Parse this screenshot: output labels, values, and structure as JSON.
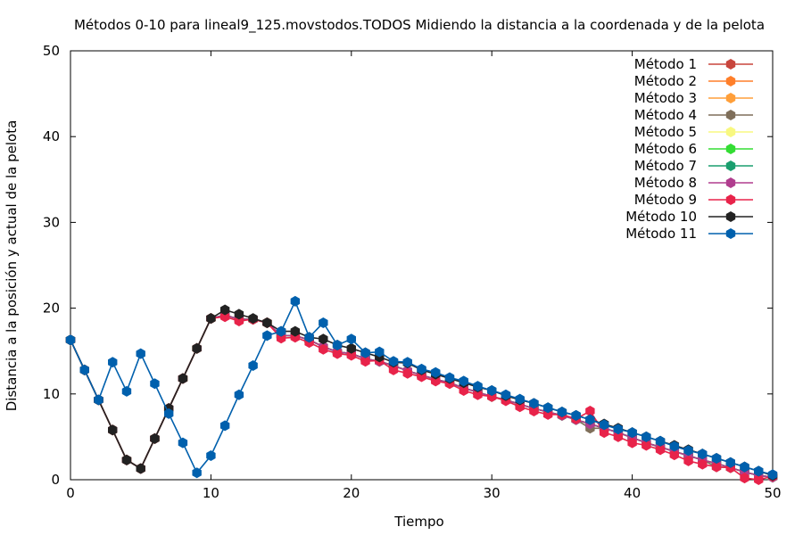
{
  "chart_data": {
    "type": "line",
    "title": "Métodos 0-10 para lineal9_125.movstodos.TODOS Midiendo la distancia a la coordenada y de la pelota",
    "xlabel": "Tiempo",
    "ylabel": "Distancia a la posición y actual de la pelota",
    "xlim": [
      0,
      50
    ],
    "ylim": [
      0,
      50
    ],
    "x_ticks": [
      0,
      10,
      20,
      30,
      40,
      50
    ],
    "y_ticks": [
      0,
      10,
      20,
      30,
      40,
      50
    ],
    "grid": false,
    "legend_position": "top-right",
    "x": [
      0,
      1,
      2,
      3,
      4,
      5,
      6,
      7,
      8,
      9,
      10,
      11,
      12,
      13,
      14,
      15,
      16,
      17,
      18,
      19,
      20,
      21,
      22,
      23,
      24,
      25,
      26,
      27,
      28,
      29,
      30,
      31,
      32,
      33,
      34,
      35,
      36,
      37,
      38,
      39,
      40,
      41,
      42,
      43,
      44,
      45,
      46,
      47,
      48,
      49,
      50
    ],
    "series": [
      {
        "name": "Método 1",
        "color": "#c8453c",
        "values": [
          16.3,
          12.8,
          9.3,
          5.8,
          2.3,
          1.3,
          4.8,
          8.3,
          11.8,
          15.3,
          18.8,
          19.2,
          18.7,
          18.7,
          18.3,
          16.8,
          16.8,
          16.3,
          15.5,
          14.9,
          14.7,
          14.1,
          13.8,
          13.3,
          12.7,
          12.2,
          11.7,
          11.3,
          10.7,
          10.2,
          9.7,
          9.3,
          8.8,
          8.3,
          7.9,
          7.5,
          7.0,
          6.5,
          6.0,
          5.5,
          4.9,
          4.3,
          3.8,
          3.3,
          2.8,
          2.3,
          1.9,
          1.4,
          0.9,
          0.5,
          0.3
        ]
      },
      {
        "name": "Método 2",
        "color": "#ff7f2a",
        "values": [
          16.3,
          12.8,
          9.3,
          5.8,
          2.3,
          1.3,
          4.8,
          8.3,
          11.8,
          15.3,
          18.8,
          19.2,
          18.7,
          18.7,
          18.3,
          16.8,
          16.8,
          16.3,
          15.5,
          14.9,
          14.7,
          14.1,
          13.8,
          13.3,
          12.7,
          12.2,
          11.7,
          11.3,
          10.7,
          10.2,
          9.7,
          9.3,
          8.8,
          8.3,
          7.9,
          7.5,
          7.0,
          6.5,
          6.0,
          5.5,
          4.9,
          4.3,
          3.8,
          3.3,
          2.8,
          2.3,
          1.9,
          1.4,
          0.9,
          0.5,
          0.3
        ]
      },
      {
        "name": "Método 3",
        "color": "#ff9f3a",
        "values": [
          16.3,
          12.8,
          9.3,
          5.8,
          2.3,
          1.3,
          4.8,
          8.3,
          11.8,
          15.3,
          18.8,
          19.2,
          18.7,
          18.7,
          18.3,
          16.8,
          16.8,
          16.3,
          15.5,
          14.9,
          14.7,
          14.1,
          13.8,
          13.3,
          12.7,
          12.2,
          11.7,
          11.3,
          10.7,
          10.2,
          9.7,
          9.3,
          8.8,
          8.3,
          7.9,
          7.5,
          7.0,
          6.5,
          6.0,
          5.5,
          4.9,
          4.3,
          3.8,
          3.3,
          2.8,
          2.3,
          1.9,
          1.4,
          0.9,
          0.5,
          0.3
        ]
      },
      {
        "name": "Método 4",
        "color": "#7f6f5a",
        "values": [
          16.3,
          12.8,
          9.3,
          5.8,
          2.3,
          1.3,
          4.8,
          8.3,
          11.8,
          15.3,
          18.8,
          19.2,
          18.7,
          18.7,
          18.3,
          16.8,
          16.8,
          16.3,
          15.5,
          14.9,
          14.7,
          14.1,
          13.8,
          13.3,
          12.7,
          12.2,
          11.7,
          11.3,
          10.7,
          10.2,
          9.7,
          9.3,
          8.8,
          8.3,
          7.9,
          7.5,
          7.0,
          6.0,
          6.0,
          5.5,
          4.9,
          4.3,
          3.8,
          3.3,
          2.8,
          2.3,
          1.5,
          1.4,
          0.9,
          0.5,
          0.3
        ]
      },
      {
        "name": "Método 5",
        "color": "#f8f880",
        "values": [
          16.3,
          12.8,
          9.3,
          5.8,
          2.3,
          1.3,
          4.8,
          8.3,
          11.8,
          15.3,
          18.8,
          19.2,
          18.7,
          18.7,
          18.3,
          16.8,
          16.8,
          16.3,
          15.5,
          14.9,
          14.7,
          14.1,
          13.8,
          13.3,
          12.7,
          12.2,
          11.7,
          11.3,
          10.7,
          10.2,
          9.7,
          9.3,
          8.8,
          8.3,
          7.9,
          7.5,
          7.0,
          6.5,
          6.0,
          5.5,
          4.9,
          4.3,
          3.8,
          3.3,
          2.8,
          2.3,
          1.9,
          1.4,
          0.9,
          0.5,
          0.3
        ]
      },
      {
        "name": "Método 6",
        "color": "#33dd33",
        "values": [
          16.3,
          12.8,
          9.3,
          5.8,
          2.3,
          1.3,
          4.8,
          8.3,
          11.8,
          15.3,
          18.8,
          19.2,
          18.7,
          18.7,
          18.3,
          16.8,
          16.8,
          16.3,
          15.5,
          14.9,
          14.7,
          14.1,
          13.8,
          13.3,
          12.7,
          12.2,
          11.7,
          11.3,
          10.7,
          10.2,
          9.7,
          9.3,
          8.8,
          8.3,
          7.9,
          7.5,
          7.0,
          6.5,
          6.0,
          5.5,
          4.9,
          4.3,
          3.8,
          3.3,
          2.8,
          2.3,
          1.9,
          1.4,
          0.9,
          0.5,
          0.3
        ]
      },
      {
        "name": "Método 7",
        "color": "#1a9e6e",
        "values": [
          16.3,
          12.8,
          9.3,
          5.8,
          2.3,
          1.3,
          4.8,
          8.3,
          11.8,
          15.3,
          18.8,
          19.2,
          18.7,
          18.7,
          18.3,
          16.8,
          16.8,
          16.3,
          15.5,
          14.9,
          14.7,
          14.1,
          13.8,
          13.3,
          12.7,
          12.2,
          11.7,
          11.3,
          10.7,
          10.2,
          9.7,
          9.3,
          8.8,
          8.3,
          7.9,
          7.5,
          7.0,
          6.5,
          6.0,
          5.5,
          4.9,
          4.3,
          3.8,
          3.3,
          2.8,
          2.3,
          1.9,
          1.4,
          0.9,
          0.5,
          0.3
        ]
      },
      {
        "name": "Método 8",
        "color": "#b03d8e",
        "values": [
          16.3,
          12.8,
          9.3,
          5.8,
          2.3,
          1.3,
          4.8,
          8.3,
          11.8,
          15.3,
          18.8,
          19.2,
          18.7,
          18.7,
          18.3,
          16.8,
          16.8,
          16.3,
          15.5,
          14.9,
          14.7,
          14.1,
          13.8,
          13.3,
          12.7,
          12.2,
          11.7,
          11.3,
          10.7,
          10.2,
          9.7,
          9.3,
          8.8,
          8.3,
          7.9,
          7.5,
          7.0,
          6.5,
          6.0,
          5.5,
          4.9,
          4.3,
          3.8,
          3.3,
          2.8,
          2.3,
          1.9,
          1.4,
          0.9,
          0.5,
          0.3
        ]
      },
      {
        "name": "Método 9",
        "color": "#e8234a",
        "values": [
          16.3,
          12.8,
          9.3,
          5.8,
          2.3,
          1.3,
          4.8,
          8.3,
          11.8,
          15.3,
          18.8,
          19.0,
          18.5,
          18.7,
          18.3,
          16.5,
          16.6,
          16.0,
          15.2,
          14.7,
          14.5,
          13.8,
          13.9,
          12.8,
          12.4,
          12.0,
          11.5,
          11.2,
          10.4,
          9.9,
          9.7,
          9.2,
          8.5,
          8.0,
          7.6,
          7.6,
          7.1,
          8.0,
          5.5,
          5.0,
          4.3,
          4.0,
          3.5,
          2.9,
          2.2,
          1.8,
          1.5,
          1.4,
          0.2,
          0.0,
          0.4
        ]
      },
      {
        "name": "Método 10",
        "color": "#222222",
        "values": [
          16.3,
          12.8,
          9.3,
          5.8,
          2.3,
          1.3,
          4.8,
          8.3,
          11.8,
          15.3,
          18.8,
          19.8,
          19.3,
          18.8,
          18.3,
          17.3,
          17.3,
          16.6,
          16.4,
          15.7,
          15.3,
          14.8,
          14.3,
          13.7,
          13.6,
          12.8,
          12.3,
          11.8,
          11.3,
          10.8,
          10.4,
          9.8,
          9.3,
          8.9,
          8.4,
          7.9,
          7.5,
          7.0,
          6.5,
          6.0,
          5.5,
          5.0,
          4.5,
          4.0,
          3.5,
          3.0,
          2.5,
          2.0,
          1.5,
          1.0,
          0.5
        ]
      },
      {
        "name": "Método 11",
        "color": "#0060ad",
        "values": [
          16.3,
          12.8,
          9.3,
          13.7,
          10.3,
          14.7,
          11.2,
          7.7,
          4.3,
          0.8,
          2.8,
          6.3,
          9.9,
          13.3,
          16.8,
          17.3,
          20.8,
          16.6,
          18.3,
          15.7,
          16.4,
          14.8,
          14.9,
          13.8,
          13.7,
          12.9,
          12.5,
          11.9,
          11.5,
          10.9,
          10.4,
          9.9,
          9.4,
          8.9,
          8.4,
          7.9,
          7.5,
          7.0,
          6.4,
          5.9,
          5.5,
          5.0,
          4.5,
          3.9,
          3.4,
          3.0,
          2.5,
          2.0,
          1.5,
          1.0,
          0.6
        ]
      }
    ]
  }
}
